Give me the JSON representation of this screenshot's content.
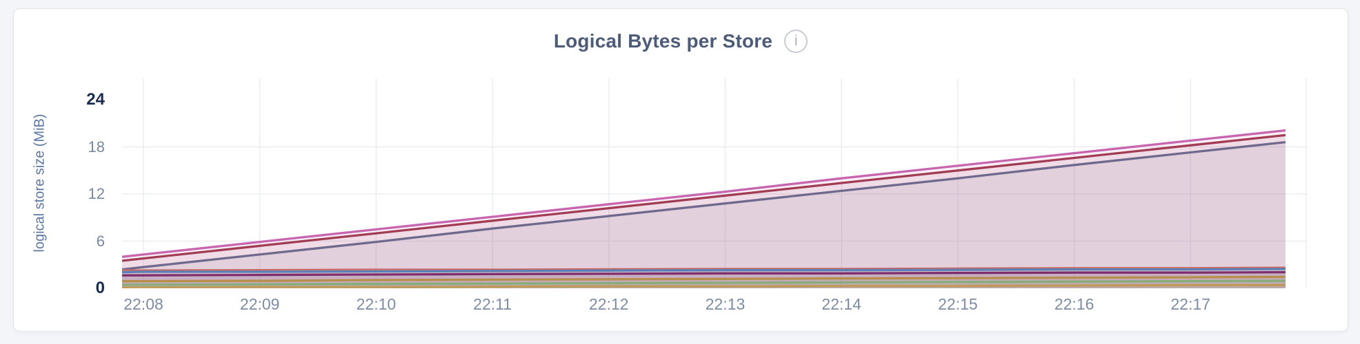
{
  "header": {
    "title": "Logical Bytes per Store",
    "info_icon_glyph": "i"
  },
  "chart_data": {
    "type": "area",
    "title": "Logical Bytes per Store",
    "xlabel": "",
    "ylabel": "logical store size (MiB)",
    "ylim": [
      0,
      24
    ],
    "y_unit": "MiB",
    "y_ticks": [
      24,
      18,
      12,
      6,
      0
    ],
    "y_bold_ticks": [
      24,
      0
    ],
    "y_gridlines": [
      18,
      12,
      6
    ],
    "grid": true,
    "legend_position": "none",
    "x_ticks": [
      "22:08",
      "22:09",
      "22:10",
      "22:11",
      "22:12",
      "22:13",
      "22:14",
      "22:15",
      "22:16",
      "22:17"
    ],
    "series": [
      {
        "name": "pink",
        "color": "#C765AE",
        "edge_start": 4.0,
        "values": [
          4.3,
          5.9,
          7.5,
          9.1,
          10.7,
          12.3,
          14.0,
          15.6,
          17.2,
          18.8
        ],
        "edge_end": 20.1
      },
      {
        "name": "crimson",
        "color": "#A23B54",
        "edge_start": 3.5,
        "values": [
          3.8,
          5.4,
          7.0,
          8.6,
          10.2,
          11.8,
          13.4,
          15.0,
          16.6,
          18.2
        ],
        "edge_end": 19.5
      },
      {
        "name": "slate-purple",
        "color": "#6F6A8D",
        "edge_start": 2.4,
        "values": [
          2.7,
          4.3,
          5.9,
          7.6,
          9.2,
          10.8,
          12.4,
          14.0,
          15.7,
          17.3
        ],
        "edge_end": 18.6
      },
      {
        "name": "salmon",
        "color": "#C96A67",
        "edge_start": 2.3,
        "values": [
          2.3,
          2.35,
          2.4,
          2.4,
          2.45,
          2.5,
          2.5,
          2.55,
          2.6,
          2.6
        ],
        "edge_end": 2.65
      },
      {
        "name": "steel-blue",
        "color": "#5B80B6",
        "edge_start": 2.05,
        "values": [
          2.1,
          2.1,
          2.15,
          2.2,
          2.25,
          2.3,
          2.3,
          2.35,
          2.4,
          2.4
        ],
        "edge_end": 2.45
      },
      {
        "name": "dark-magenta",
        "color": "#7E2F6B",
        "edge_start": 1.65,
        "values": [
          1.65,
          1.7,
          1.75,
          1.8,
          1.85,
          1.9,
          1.9,
          1.95,
          2.0,
          2.0
        ],
        "edge_end": 2.05
      },
      {
        "name": "gold",
        "color": "#B68F4C",
        "edge_start": 0.9,
        "values": [
          0.9,
          0.95,
          1.05,
          1.1,
          1.15,
          1.2,
          1.25,
          1.3,
          1.35,
          1.4
        ],
        "edge_end": 1.45
      },
      {
        "name": "green",
        "color": "#87AD7B",
        "edge_start": 0.45,
        "values": [
          0.45,
          0.5,
          0.55,
          0.6,
          0.65,
          0.7,
          0.75,
          0.8,
          0.85,
          0.9
        ],
        "edge_end": 0.95
      },
      {
        "name": "tan",
        "color": "#C09A58",
        "edge_start": 0.1,
        "values": [
          0.1,
          0.15,
          0.15,
          0.2,
          0.25,
          0.25,
          0.3,
          0.3,
          0.35,
          0.4
        ],
        "edge_end": 0.4
      }
    ]
  },
  "colors": {
    "page_bg": "#F4F5F9",
    "card_bg": "#FFFFFF",
    "card_border": "#E2E4EA",
    "title": "#4C5B77",
    "axis_bold": "#1A2C4E",
    "axis_muted": "#7888A0",
    "y_axis_title": "#5B76A3",
    "gridline": "#EBEDF1",
    "fill_opacity": 0.1
  }
}
